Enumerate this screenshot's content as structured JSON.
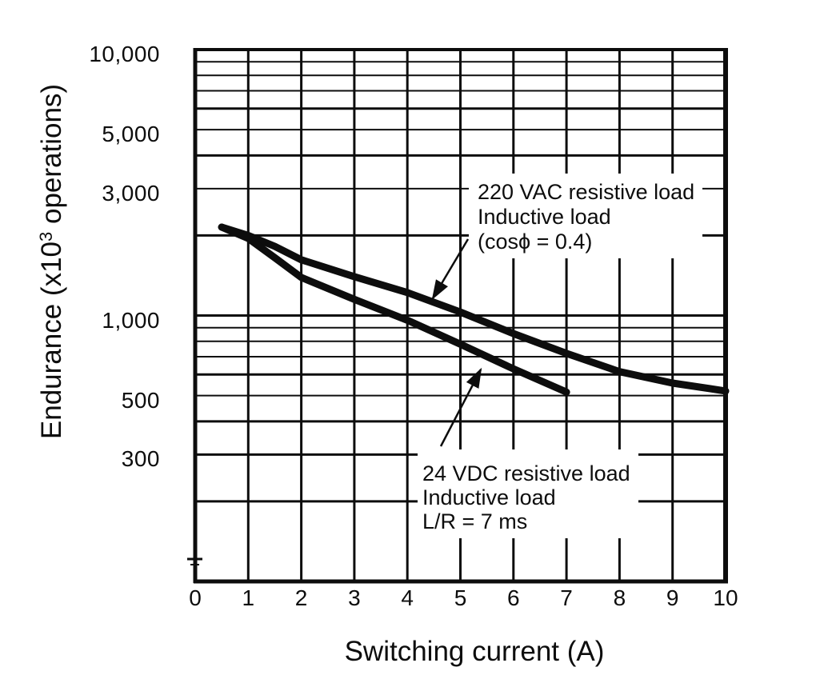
{
  "chart_data": {
    "type": "line",
    "title": "",
    "xlabel": "Switching current (A)",
    "ylabel": "Endurance (x10^3 operations)",
    "ylabel_parts": {
      "prefix": "Endurance (x10",
      "sup": "3",
      "suffix": " operations)"
    },
    "x_scale": "linear",
    "y_scale": "log",
    "xlim": [
      0,
      10
    ],
    "ylim": [
      100,
      10000
    ],
    "grid": true,
    "legend_position": "none",
    "x_tick_labels": [
      "0",
      "1",
      "2",
      "3",
      "4",
      "5",
      "6",
      "7",
      "8",
      "9",
      "10"
    ],
    "x_tick_values": [
      0,
      1,
      2,
      3,
      4,
      5,
      6,
      7,
      8,
      9,
      10
    ],
    "y_tick_labels": [
      "10,000",
      "5,000",
      "3,000",
      "1,000",
      "500",
      "300"
    ],
    "y_tick_values": [
      10000,
      5000,
      3000,
      1000,
      500,
      300
    ],
    "grid_y_values": [
      10000,
      9000,
      8000,
      7000,
      6000,
      5000,
      4000,
      3000,
      2000,
      1000,
      900,
      800,
      700,
      600,
      500,
      400,
      300,
      200
    ],
    "grid_x_values": [
      1,
      2,
      3,
      4,
      5,
      6,
      7,
      8,
      9
    ],
    "series": [
      {
        "name": "220 VAC resistive load / Inductive load (cosϕ = 0.4)",
        "units": {
          "x": "A",
          "y": "x10^3 operations"
        },
        "points": [
          [
            0.5,
            2150
          ],
          [
            1,
            2000
          ],
          [
            1.5,
            1820
          ],
          [
            2,
            1620
          ],
          [
            3,
            1400
          ],
          [
            4,
            1220
          ],
          [
            5,
            1030
          ],
          [
            6,
            855
          ],
          [
            7,
            720
          ],
          [
            8,
            615
          ],
          [
            9,
            557
          ],
          [
            10,
            520
          ]
        ]
      },
      {
        "name": "24 VDC resistive load / Inductive load L/R = 7 ms",
        "units": {
          "x": "A",
          "y": "x10^3 operations"
        },
        "points": [
          [
            0.5,
            2150
          ],
          [
            1,
            1950
          ],
          [
            1.5,
            1650
          ],
          [
            2,
            1390
          ],
          [
            3,
            1150
          ],
          [
            4,
            960
          ],
          [
            5,
            780
          ],
          [
            6,
            630
          ],
          [
            7,
            515
          ]
        ]
      }
    ],
    "annotations": [
      {
        "target": "220 VAC curve",
        "lines": [
          "220 VAC resistive load",
          "Inductive load",
          "(cosϕ = 0.4)"
        ]
      },
      {
        "target": "24 VDC curve",
        "lines": [
          "24 VDC resistive load",
          "Inductive load",
          "L/R = 7 ms"
        ]
      }
    ]
  }
}
